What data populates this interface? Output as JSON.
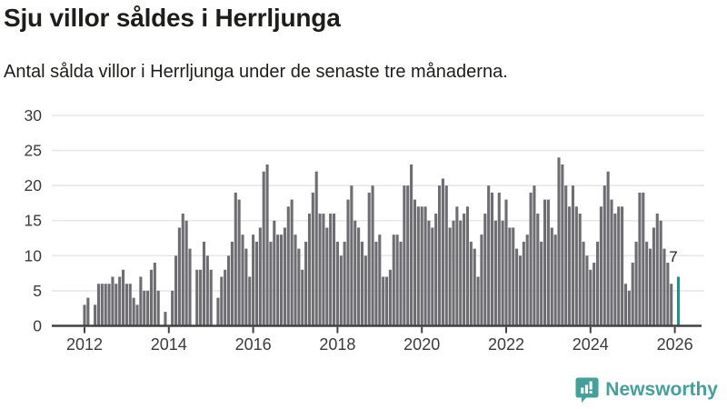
{
  "header": {
    "title": "Sju villor såldes i Herrljunga",
    "subtitle": "Antal sålda villor i Herrljunga under de senaste tre månaderna."
  },
  "chart_data": {
    "type": "bar",
    "title": "Sju villor såldes i Herrljunga",
    "subtitle": "Antal sålda villor i Herrljunga under de senaste tre månaderna.",
    "unit": "antal sålda villor per månad",
    "start_month": "2012-01",
    "x_tick_years": [
      2012,
      2014,
      2016,
      2018,
      2020,
      2022,
      2024,
      2026
    ],
    "y_ticks": [
      0,
      5,
      10,
      15,
      20,
      25,
      30
    ],
    "ylim": [
      0,
      30
    ],
    "grid": true,
    "legend": "none",
    "values": [
      3,
      4,
      0,
      3,
      6,
      6,
      6,
      6,
      7,
      6,
      7,
      8,
      6,
      6,
      4,
      3,
      7,
      5,
      5,
      8,
      9,
      5,
      0,
      2,
      0,
      5,
      10,
      14,
      16,
      15,
      11,
      0,
      8,
      8,
      12,
      10,
      8,
      0,
      4,
      7,
      8,
      10,
      12,
      19,
      18,
      13,
      11,
      7,
      13,
      12,
      14,
      22,
      23,
      12,
      15,
      13,
      13,
      14,
      17,
      18,
      13,
      11,
      8,
      12,
      16,
      19,
      22,
      16,
      16,
      14,
      16,
      16,
      12,
      10,
      12,
      18,
      20,
      15,
      14,
      12,
      10,
      19,
      20,
      12,
      13,
      7,
      7,
      8,
      13,
      13,
      12,
      20,
      20,
      23,
      18,
      17,
      17,
      17,
      15,
      14,
      16,
      20,
      21,
      20,
      14,
      15,
      17,
      15,
      16,
      17,
      12,
      11,
      7,
      13,
      16,
      20,
      19,
      15,
      19,
      15,
      18,
      14,
      14,
      11,
      10,
      12,
      13,
      19,
      20,
      16,
      12,
      18,
      18,
      14,
      13,
      24,
      23,
      20,
      17,
      20,
      17,
      16,
      12,
      10,
      8,
      9,
      12,
      17,
      20,
      22,
      18,
      16,
      17,
      17,
      6,
      5,
      9,
      12,
      19,
      19,
      12,
      11,
      14,
      16,
      15,
      11,
      9,
      6,
      0,
      7
    ],
    "highlight_last_bar": true,
    "last_value_label": "7",
    "colors": {
      "bar": "#6d6d72",
      "highlight": "#00a099",
      "grid": "#e7e7e7",
      "axis": "#424242",
      "tick_label": "#3b3b3b",
      "text": "#1d1d1b"
    }
  },
  "footer": {
    "brand": "Newsworthy",
    "brand_color": "#43a19a",
    "logo_icon": "speech-bubble-bar-chart-icon"
  }
}
